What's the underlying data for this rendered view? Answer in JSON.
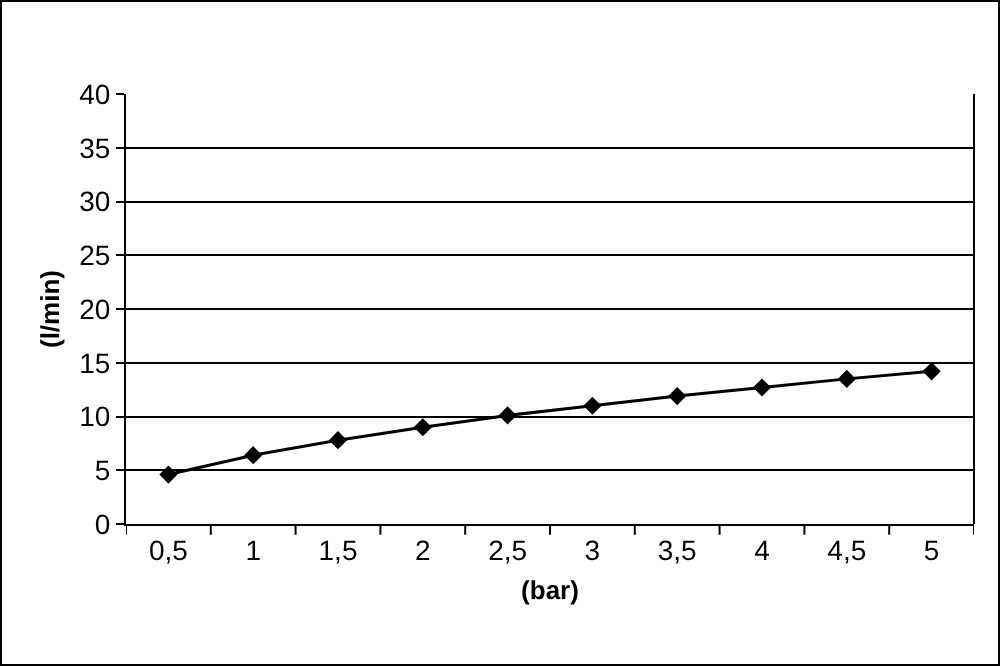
{
  "chart_data": {
    "type": "line",
    "xlabel": "(bar)",
    "ylabel": "(l/min)",
    "categories": [
      "0,5",
      "1",
      "1,5",
      "2",
      "2,5",
      "3",
      "3,5",
      "4",
      "4,5",
      "5"
    ],
    "series": [
      {
        "color": "#000000",
        "values": [
          4.6,
          6.4,
          7.8,
          9.0,
          10.1,
          11.0,
          11.9,
          12.7,
          13.5,
          14.2
        ]
      }
    ],
    "ylim": [
      0,
      40
    ],
    "yticks": [
      0,
      5,
      10,
      15,
      20,
      25,
      30,
      35,
      40
    ],
    "grid": "y",
    "marker": "diamond",
    "line_style": "solid"
  }
}
